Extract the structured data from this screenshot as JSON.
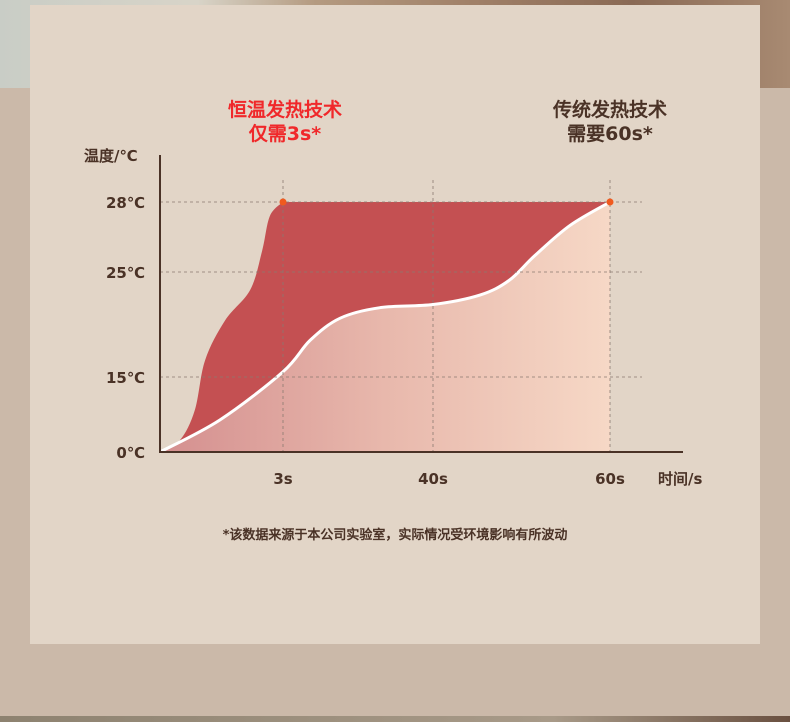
{
  "chart_data": {
    "type": "area",
    "ylabel": "温度/℃",
    "xlabel": "时间/s",
    "y_ticks": [
      {
        "value": 0,
        "label": "0℃"
      },
      {
        "value": 15,
        "label": "15℃"
      },
      {
        "value": 25,
        "label": "25℃"
      },
      {
        "value": 28,
        "label": "28℃"
      }
    ],
    "x_ticks": [
      {
        "value": 3,
        "label": "3s"
      },
      {
        "value": 40,
        "label": "40s"
      },
      {
        "value": 60,
        "label": "60s"
      }
    ],
    "grid": true,
    "series": [
      {
        "name": "恒温发热技术",
        "color": "#c45052",
        "points": [
          [
            0,
            0
          ],
          [
            0.49,
            2.4
          ],
          [
            0.85,
            8.4
          ],
          [
            1.1,
            16.6
          ],
          [
            1.59,
            20.4
          ],
          [
            2.2,
            23.3
          ],
          [
            2.49,
            25.9
          ],
          [
            2.68,
            27.4
          ],
          [
            3,
            28
          ],
          [
            60,
            28
          ]
        ]
      },
      {
        "name": "传统发热技术",
        "color": "#ffffff",
        "points": [
          [
            0,
            0
          ],
          [
            1.46,
            6.4
          ],
          [
            3,
            15.5
          ],
          [
            9.7,
            18.5
          ],
          [
            17.1,
            20.6
          ],
          [
            26.9,
            21.6
          ],
          [
            40,
            21.9
          ],
          [
            45.3,
            22.8
          ],
          [
            48.6,
            24.2
          ],
          [
            51.5,
            25.7
          ],
          [
            55.5,
            27.0
          ],
          [
            60,
            28
          ]
        ]
      }
    ],
    "markers": [
      [
        3,
        28
      ],
      [
        60,
        28
      ]
    ],
    "marker_color": "#f05a1e"
  },
  "annotations": {
    "left_title_line1": "恒温发热技术",
    "left_title_line2": "仅需3s*",
    "right_title_line1": "传统发热技术",
    "right_title_line2": "需要60s*"
  },
  "footnote": "*该数据来源于本公司实验室，实际情况受环境影响有所波动"
}
